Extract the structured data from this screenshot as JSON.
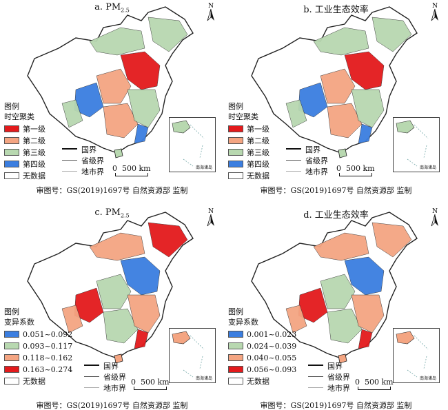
{
  "panels": [
    {
      "title_prefix": "a. PM",
      "title_sub": "2.5",
      "title_suffix": "",
      "legend_heading": "图例",
      "legend_subheading": "时空聚类",
      "legend": [
        {
          "label": "第一级",
          "color": "#e31a1c"
        },
        {
          "label": "第二级",
          "color": "#f4a582"
        },
        {
          "label": "第三级",
          "color": "#b8d8b0"
        },
        {
          "label": "第四级",
          "color": "#3b7ee0"
        },
        {
          "label": "无数据",
          "color": "#ffffff"
        }
      ]
    },
    {
      "title_prefix": "b. 工业生态效率",
      "title_sub": "",
      "title_suffix": "",
      "legend_heading": "图例",
      "legend_subheading": "时空聚类",
      "legend": [
        {
          "label": "第一级",
          "color": "#e31a1c"
        },
        {
          "label": "第二级",
          "color": "#f4a582"
        },
        {
          "label": "第三级",
          "color": "#b8d8b0"
        },
        {
          "label": "第四级",
          "color": "#3b7ee0"
        },
        {
          "label": "无数据",
          "color": "#ffffff"
        }
      ]
    },
    {
      "title_prefix": "c. PM",
      "title_sub": "2.5",
      "title_suffix": "",
      "legend_heading": "图例",
      "legend_subheading": "变异系数",
      "legend": [
        {
          "label": "0.051~0.092",
          "color": "#3b7ee0"
        },
        {
          "label": "0.093~0.117",
          "color": "#b8d8b0"
        },
        {
          "label": "0.118~0.162",
          "color": "#f4a582"
        },
        {
          "label": "0.163~0.274",
          "color": "#e31a1c"
        },
        {
          "label": "无数据",
          "color": "#ffffff"
        }
      ]
    },
    {
      "title_prefix": "d. 工业生态效率",
      "title_sub": "",
      "title_suffix": "",
      "legend_heading": "图例",
      "legend_subheading": "变异系数",
      "legend": [
        {
          "label": "0.001~0.023",
          "color": "#3b7ee0"
        },
        {
          "label": "0.024~0.039",
          "color": "#b8d8b0"
        },
        {
          "label": "0.040~0.055",
          "color": "#f4a582"
        },
        {
          "label": "0.056~0.093",
          "color": "#e31a1c"
        },
        {
          "label": "无数据",
          "color": "#ffffff"
        }
      ]
    }
  ],
  "line_legend": {
    "national": "国界",
    "provincial": "省级界",
    "city": "地市界"
  },
  "scale": {
    "zero": "0",
    "distance": "500 km"
  },
  "north_label": "N",
  "inset_label": "南海诸岛",
  "approval": "审图号：GS(2019)1697号 自然资源部 监制"
}
